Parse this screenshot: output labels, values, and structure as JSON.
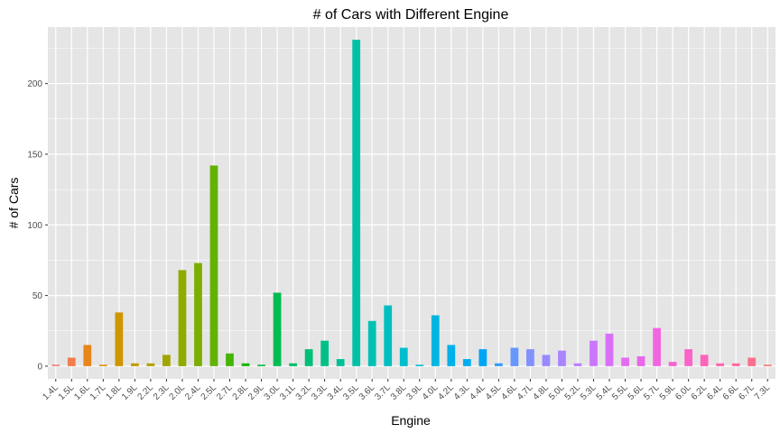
{
  "chart_data": {
    "type": "bar",
    "title": "# of Cars with Different Engine",
    "xlabel": "Engine",
    "ylabel": "# of Cars",
    "ylim": [
      -9,
      240
    ],
    "yticks": [
      0,
      50,
      100,
      150,
      200
    ],
    "grid": true,
    "legend": "none",
    "panel_background": "#e5e5e5",
    "grid_color": "#ffffff",
    "categories": [
      "1.4L",
      "1.5L",
      "1.6L",
      "1.7L",
      "1.8L",
      "1.9L",
      "2.2L",
      "2.3L",
      "2.0L",
      "2.4L",
      "2.5L",
      "2.7L",
      "2.8L",
      "2.9L",
      "3.0L",
      "3.1L",
      "3.2L",
      "3.3L",
      "3.4L",
      "3.5L",
      "3.6L",
      "3.7L",
      "3.8L",
      "3.9L",
      "4.0L",
      "4.2L",
      "4.3L",
      "4.4L",
      "4.5L",
      "4.6L",
      "4.7L",
      "4.8L",
      "5.0L",
      "5.2L",
      "5.3L",
      "5.4L",
      "5.5L",
      "5.6L",
      "5.7L",
      "5.9L",
      "6.0L",
      "6.2L",
      "6.4L",
      "6.6L",
      "6.7L",
      "7.3L"
    ],
    "series": [
      {
        "values": [
          1,
          6,
          15,
          1,
          38,
          2,
          2,
          8,
          68,
          73,
          142,
          9,
          2,
          1,
          52,
          2,
          12,
          18,
          5,
          231,
          32,
          43,
          13,
          1,
          36,
          15,
          5,
          12,
          2,
          13,
          12,
          8,
          11,
          2,
          18,
          23,
          6,
          7,
          27,
          3,
          12,
          8,
          2,
          2,
          6,
          1
        ],
        "colors": [
          "#f8766d",
          "#f07e4c",
          "#e7861b",
          "#da8f00",
          "#cf9600",
          "#c19c00",
          "#b3a100",
          "#a2a500",
          "#90aa00",
          "#7cae00",
          "#63b200",
          "#45b500",
          "#19b800",
          "#00ba38",
          "#00bc52",
          "#00bd66",
          "#00bf77",
          "#00c088",
          "#00c097",
          "#00c1a6",
          "#00c1b3",
          "#00bfc0",
          "#00bdcc",
          "#00bad6",
          "#00b6e0",
          "#00b1e9",
          "#00abf0",
          "#00a5f6",
          "#319dfa",
          "#6597fd",
          "#8291ff",
          "#998aff",
          "#ab84ff",
          "#bc7eff",
          "#cb77fd",
          "#d871f8",
          "#e36cf1",
          "#eb67e9",
          "#f265e0",
          "#f763d5",
          "#fb63c8",
          "#fd64bb",
          "#fe67ad",
          "#fd6b9f",
          "#fb6f8f",
          "#f8766d"
        ]
      }
    ]
  }
}
